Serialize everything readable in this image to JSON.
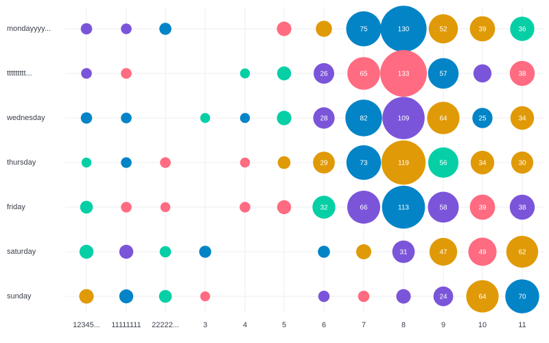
{
  "chart_data": {
    "type": "scatter",
    "subtype": "bubble-punchcard",
    "y_categories": [
      "mondayyyy...",
      "ttttttttt...",
      "wednesday",
      "thursday",
      "friday",
      "saturday",
      "sunday"
    ],
    "x_categories": [
      "12345...",
      "11111111",
      "22222...",
      "3",
      "4",
      "5",
      "6",
      "7",
      "8",
      "9",
      "10",
      "11"
    ],
    "palette": [
      "#7b55d9",
      "#0284c7",
      "#ff6b81",
      "#06cfa6",
      "#e09a07"
    ],
    "grid": true,
    "points": [
      {
        "row": 0,
        "col": 0,
        "value": 8,
        "color": "#7b55d9"
      },
      {
        "row": 0,
        "col": 1,
        "value": 7,
        "color": "#7b55d9"
      },
      {
        "row": 0,
        "col": 2,
        "value": 9,
        "color": "#0284c7"
      },
      {
        "row": 0,
        "col": 5,
        "value": 13,
        "color": "#ff6b81"
      },
      {
        "row": 0,
        "col": 6,
        "value": 16,
        "color": "#e09a07"
      },
      {
        "row": 0,
        "col": 7,
        "value": 75,
        "color": "#0284c7",
        "label": "75"
      },
      {
        "row": 0,
        "col": 8,
        "value": 130,
        "color": "#0284c7",
        "label": "130"
      },
      {
        "row": 0,
        "col": 9,
        "value": 52,
        "color": "#e09a07",
        "label": "52"
      },
      {
        "row": 0,
        "col": 10,
        "value": 39,
        "color": "#e09a07",
        "label": "39"
      },
      {
        "row": 0,
        "col": 11,
        "value": 36,
        "color": "#06cfa6",
        "label": "36"
      },
      {
        "row": 1,
        "col": 0,
        "value": 7,
        "color": "#7b55d9"
      },
      {
        "row": 1,
        "col": 1,
        "value": 7,
        "color": "#ff6b81"
      },
      {
        "row": 1,
        "col": 4,
        "value": 6,
        "color": "#06cfa6"
      },
      {
        "row": 1,
        "col": 5,
        "value": 12,
        "color": "#06cfa6"
      },
      {
        "row": 1,
        "col": 6,
        "value": 26,
        "color": "#7b55d9",
        "label": "26"
      },
      {
        "row": 1,
        "col": 7,
        "value": 65,
        "color": "#ff6b81",
        "label": "65"
      },
      {
        "row": 1,
        "col": 8,
        "value": 133,
        "color": "#ff6b81",
        "label": "133"
      },
      {
        "row": 1,
        "col": 9,
        "value": 57,
        "color": "#0284c7",
        "label": "57"
      },
      {
        "row": 1,
        "col": 10,
        "value": 20,
        "color": "#7b55d9"
      },
      {
        "row": 1,
        "col": 11,
        "value": 38,
        "color": "#ff6b81",
        "label": "38"
      },
      {
        "row": 2,
        "col": 0,
        "value": 8,
        "color": "#0284c7"
      },
      {
        "row": 2,
        "col": 1,
        "value": 7,
        "color": "#0284c7"
      },
      {
        "row": 2,
        "col": 3,
        "value": 6,
        "color": "#06cfa6"
      },
      {
        "row": 2,
        "col": 4,
        "value": 6,
        "color": "#0284c7"
      },
      {
        "row": 2,
        "col": 5,
        "value": 13,
        "color": "#06cfa6"
      },
      {
        "row": 2,
        "col": 6,
        "value": 28,
        "color": "#7b55d9",
        "label": "28"
      },
      {
        "row": 2,
        "col": 7,
        "value": 82,
        "color": "#0284c7",
        "label": "82"
      },
      {
        "row": 2,
        "col": 8,
        "value": 109,
        "color": "#7b55d9",
        "label": "109"
      },
      {
        "row": 2,
        "col": 9,
        "value": 64,
        "color": "#e09a07",
        "label": "64"
      },
      {
        "row": 2,
        "col": 10,
        "value": 25,
        "color": "#0284c7",
        "label": "25"
      },
      {
        "row": 2,
        "col": 11,
        "value": 34,
        "color": "#e09a07",
        "label": "34"
      },
      {
        "row": 3,
        "col": 0,
        "value": 6,
        "color": "#06cfa6"
      },
      {
        "row": 3,
        "col": 1,
        "value": 7,
        "color": "#0284c7"
      },
      {
        "row": 3,
        "col": 2,
        "value": 7,
        "color": "#ff6b81"
      },
      {
        "row": 3,
        "col": 4,
        "value": 6,
        "color": "#ff6b81"
      },
      {
        "row": 3,
        "col": 5,
        "value": 10,
        "color": "#e09a07"
      },
      {
        "row": 3,
        "col": 6,
        "value": 29,
        "color": "#e09a07",
        "label": "29"
      },
      {
        "row": 3,
        "col": 7,
        "value": 73,
        "color": "#0284c7",
        "label": "73"
      },
      {
        "row": 3,
        "col": 8,
        "value": 119,
        "color": "#e09a07",
        "label": "119"
      },
      {
        "row": 3,
        "col": 9,
        "value": 56,
        "color": "#06cfa6",
        "label": "56"
      },
      {
        "row": 3,
        "col": 10,
        "value": 34,
        "color": "#e09a07",
        "label": "34"
      },
      {
        "row": 3,
        "col": 11,
        "value": 30,
        "color": "#e09a07",
        "label": "30"
      },
      {
        "row": 4,
        "col": 0,
        "value": 10,
        "color": "#06cfa6"
      },
      {
        "row": 4,
        "col": 1,
        "value": 7,
        "color": "#ff6b81"
      },
      {
        "row": 4,
        "col": 2,
        "value": 6,
        "color": "#ff6b81"
      },
      {
        "row": 4,
        "col": 4,
        "value": 7,
        "color": "#ff6b81"
      },
      {
        "row": 4,
        "col": 5,
        "value": 12,
        "color": "#ff6b81"
      },
      {
        "row": 4,
        "col": 6,
        "value": 32,
        "color": "#06cfa6",
        "label": "32"
      },
      {
        "row": 4,
        "col": 7,
        "value": 66,
        "color": "#7b55d9",
        "label": "66"
      },
      {
        "row": 4,
        "col": 8,
        "value": 113,
        "color": "#0284c7",
        "label": "113"
      },
      {
        "row": 4,
        "col": 9,
        "value": 58,
        "color": "#7b55d9",
        "label": "58"
      },
      {
        "row": 4,
        "col": 10,
        "value": 39,
        "color": "#ff6b81",
        "label": "39"
      },
      {
        "row": 4,
        "col": 11,
        "value": 38,
        "color": "#7b55d9",
        "label": "38"
      },
      {
        "row": 5,
        "col": 0,
        "value": 12,
        "color": "#06cfa6"
      },
      {
        "row": 5,
        "col": 1,
        "value": 12,
        "color": "#7b55d9"
      },
      {
        "row": 5,
        "col": 2,
        "value": 8,
        "color": "#06cfa6"
      },
      {
        "row": 5,
        "col": 3,
        "value": 9,
        "color": "#0284c7"
      },
      {
        "row": 5,
        "col": 6,
        "value": 9,
        "color": "#0284c7"
      },
      {
        "row": 5,
        "col": 7,
        "value": 14,
        "color": "#e09a07"
      },
      {
        "row": 5,
        "col": 8,
        "value": 31,
        "color": "#7b55d9",
        "label": "31"
      },
      {
        "row": 5,
        "col": 9,
        "value": 47,
        "color": "#e09a07",
        "label": "47"
      },
      {
        "row": 5,
        "col": 10,
        "value": 49,
        "color": "#ff6b81",
        "label": "49"
      },
      {
        "row": 5,
        "col": 11,
        "value": 62,
        "color": "#e09a07",
        "label": "62"
      },
      {
        "row": 6,
        "col": 0,
        "value": 13,
        "color": "#e09a07"
      },
      {
        "row": 6,
        "col": 1,
        "value": 12,
        "color": "#0284c7"
      },
      {
        "row": 6,
        "col": 2,
        "value": 10,
        "color": "#06cfa6"
      },
      {
        "row": 6,
        "col": 3,
        "value": 6,
        "color": "#ff6b81"
      },
      {
        "row": 6,
        "col": 6,
        "value": 8,
        "color": "#7b55d9"
      },
      {
        "row": 6,
        "col": 7,
        "value": 8,
        "color": "#ff6b81"
      },
      {
        "row": 6,
        "col": 8,
        "value": 13,
        "color": "#7b55d9"
      },
      {
        "row": 6,
        "col": 9,
        "value": 24,
        "color": "#7b55d9",
        "label": "24"
      },
      {
        "row": 6,
        "col": 10,
        "value": 64,
        "color": "#e09a07",
        "label": "64"
      },
      {
        "row": 6,
        "col": 11,
        "value": 70,
        "color": "#0284c7",
        "label": "70"
      }
    ]
  }
}
